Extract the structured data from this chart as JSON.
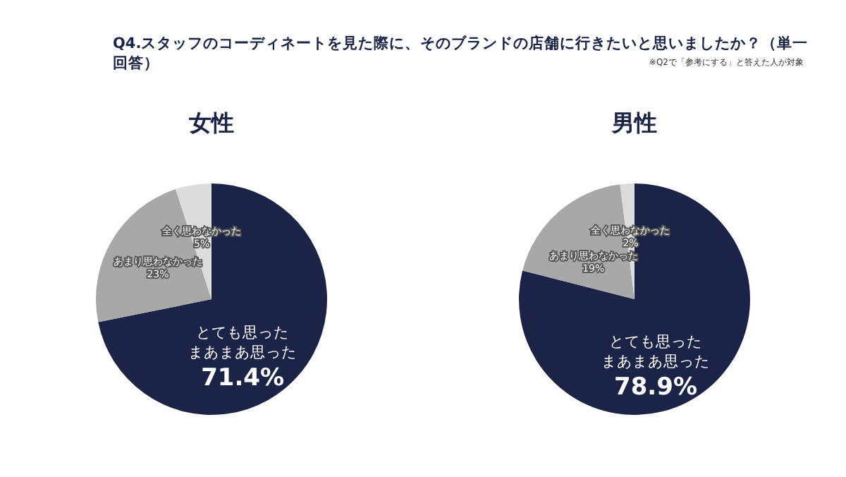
{
  "chart_data": [
    {
      "type": "pie",
      "title": "Q4.スタッフのコーディネートを見た際に、そのブランドの店舗に行きたいと思いましたか？（単一回答）",
      "subtitle": "女性",
      "annotations": [
        "※Q2で「参考にする」と答えた人が対象"
      ],
      "categories": [
        "とても思ったまあまあ思った",
        "あまり思わなかった",
        "全く思わなかった"
      ],
      "values": [
        71.4,
        23,
        5
      ],
      "value_labels": [
        "71.4%",
        "23%",
        "5%"
      ],
      "colors": [
        "#1b2447",
        "#a8a8a8",
        "#dcdcdc"
      ],
      "legend": false
    },
    {
      "type": "pie",
      "subtitle": "男性",
      "categories": [
        "とても思ったまあまあ思った",
        "あまり思わなかった",
        "全く思わなかった"
      ],
      "values": [
        78.9,
        19,
        2
      ],
      "value_labels": [
        "78.9%",
        "19%",
        "2%"
      ],
      "colors": [
        "#1b2447",
        "#a8a8a8",
        "#dcdcdc"
      ],
      "legend": false
    }
  ]
}
